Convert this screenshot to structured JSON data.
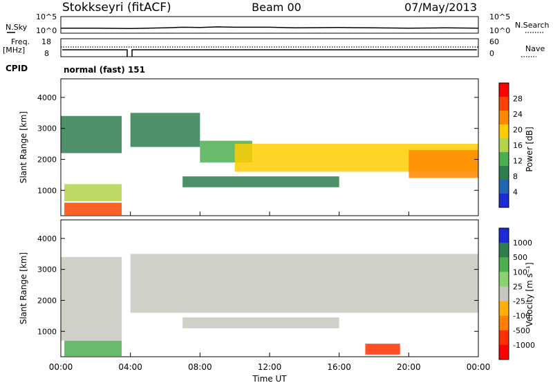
{
  "header": {
    "station": "Stokkseyri (fitACF)",
    "beam": "Beam 00",
    "date": "07/May/2013"
  },
  "noise_panel": {
    "left_label": "N.Sky",
    "right_label": "N.Search",
    "ticks_left": [
      "10^5",
      "10^0"
    ],
    "ticks_right": [
      "10^5",
      "10^0"
    ]
  },
  "freq_panel": {
    "left_label_top": "Freq.",
    "left_label_unit": "[MHz]",
    "right_label": "Nave",
    "ticks_left": [
      "18",
      "8"
    ],
    "ticks_right": [
      "60",
      "0"
    ]
  },
  "cpid": {
    "label": "CPID",
    "value": "normal (fast) 151"
  },
  "power_panel": {
    "ylabel": "Slant Range [km]",
    "yticks": [
      "4000",
      "3000",
      "2000",
      "1000"
    ],
    "colorbar_label": "Power [dB]",
    "colorbar_ticks": [
      "28",
      "24",
      "20",
      "16",
      "12",
      "8",
      "4"
    ],
    "colorbar_colors": [
      "#ff0000",
      "#ff4400",
      "#ff8800",
      "#ffcc00",
      "#b4d24a",
      "#4caf50",
      "#2e7d4f",
      "#1f66b0",
      "#1a2bd6"
    ]
  },
  "velocity_panel": {
    "ylabel": "Slant Range [km]",
    "yticks": [
      "4000",
      "3000",
      "2000",
      "1000"
    ],
    "colorbar_label": "Velocity [m s⁻¹]",
    "colorbar_ticks": [
      "1000",
      "500",
      "100",
      "25",
      "-25",
      "-100",
      "-500",
      "-1000"
    ],
    "colorbar_colors": [
      "#1a2bd6",
      "#2e7d4f",
      "#4caf50",
      "#8bd36a",
      "#c8c8c0",
      "#ffb000",
      "#ff7f00",
      "#ff3000",
      "#ff0000"
    ]
  },
  "x_axis": {
    "ticks": [
      "00:00",
      "04:00",
      "08:00",
      "12:00",
      "16:00",
      "20:00",
      "00:00"
    ],
    "label": "Time UT"
  },
  "chart_data": [
    {
      "type": "line",
      "title": "Stokkseyri (fitACF) Beam 00 07/May/2013",
      "xlabel": "Time UT",
      "ylabel": "N.Sky",
      "xlim": [
        "00:00",
        "24:00"
      ],
      "ylim_log10": [
        0,
        5
      ],
      "series": [
        {
          "name": "N.Sky",
          "x_hours": [
            0,
            2,
            4,
            6,
            7,
            8,
            9,
            10,
            12,
            13.5,
            16,
            18,
            20,
            22,
            24
          ],
          "log10_values": [
            1.5,
            1.5,
            1.4,
            1.6,
            1.8,
            1.7,
            1.9,
            1.8,
            1.8,
            1.6,
            1.7,
            1.6,
            1.5,
            1.6,
            1.5
          ]
        }
      ]
    },
    {
      "type": "heatmap",
      "title": "Power",
      "xlabel": "Time UT",
      "ylabel": "Slant Range [km]",
      "ylim": [
        180,
        4600
      ],
      "colorbar": "Power [dB]",
      "range": [
        0,
        30
      ],
      "bands": [
        {
          "t_start_h": 0.2,
          "t_end_h": 3.5,
          "range_start_km": 200,
          "range_end_km": 600,
          "power_db": 28
        },
        {
          "t_start_h": 0.2,
          "t_end_h": 3.5,
          "range_start_km": 650,
          "range_end_km": 1200,
          "power_db": 16
        },
        {
          "t_start_h": 0.0,
          "t_end_h": 3.5,
          "range_start_km": 2200,
          "range_end_km": 3400,
          "power_db": 6
        },
        {
          "t_start_h": 4.0,
          "t_end_h": 8.0,
          "range_start_km": 2400,
          "range_end_km": 3500,
          "power_db": 8
        },
        {
          "t_start_h": 8.0,
          "t_end_h": 11.0,
          "range_start_km": 1900,
          "range_end_km": 2600,
          "power_db": 10
        },
        {
          "t_start_h": 10.0,
          "t_end_h": 24.0,
          "range_start_km": 1600,
          "range_end_km": 2500,
          "power_db": 18
        },
        {
          "t_start_h": 7.0,
          "t_end_h": 16.0,
          "range_start_km": 1100,
          "range_end_km": 1450,
          "power_db": 6
        },
        {
          "t_start_h": 20.0,
          "t_end_h": 24.0,
          "range_start_km": 1400,
          "range_end_km": 2300,
          "power_db": 24
        }
      ]
    },
    {
      "type": "heatmap",
      "title": "Velocity",
      "xlabel": "Time UT",
      "ylabel": "Slant Range [km]",
      "ylim": [
        180,
        4600
      ],
      "colorbar": "Velocity [m s-1]",
      "range": [
        -1000,
        1000
      ],
      "bands": [
        {
          "t_start_h": 0.2,
          "t_end_h": 3.5,
          "range_start_km": 200,
          "range_end_km": 700,
          "velocity_ms": 300
        },
        {
          "t_start_h": 0.0,
          "t_end_h": 3.5,
          "range_start_km": 700,
          "range_end_km": 3400,
          "velocity_ms": 0
        },
        {
          "t_start_h": 4.0,
          "t_end_h": 24.0,
          "range_start_km": 1600,
          "range_end_km": 3500,
          "velocity_ms": 0
        },
        {
          "t_start_h": 7.0,
          "t_end_h": 16.0,
          "range_start_km": 1100,
          "range_end_km": 1450,
          "velocity_ms": 0
        },
        {
          "t_start_h": 17.5,
          "t_end_h": 19.5,
          "range_start_km": 250,
          "range_end_km": 600,
          "velocity_ms": -500
        }
      ]
    }
  ]
}
